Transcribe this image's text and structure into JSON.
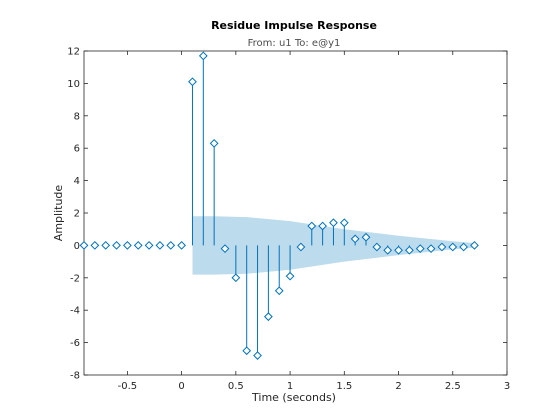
{
  "chart_data": {
    "type": "stem",
    "title": "Residue Impulse Response",
    "subtitle": "From: u1  To: e@y1",
    "xlabel": "Time (seconds)",
    "ylabel": "Amplitude",
    "xlim": [
      -0.9,
      3.0
    ],
    "ylim": [
      -8,
      12
    ],
    "xticks": [
      -0.5,
      0,
      0.5,
      1,
      1.5,
      2,
      2.5,
      3
    ],
    "xtick_labels": [
      "-0.5",
      "0",
      "0.5",
      "1",
      "1.5",
      "2",
      "2.5",
      "3"
    ],
    "yticks": [
      -8,
      -6,
      -4,
      -2,
      0,
      2,
      4,
      6,
      8,
      10,
      12
    ],
    "ytick_labels": [
      "-8",
      "-6",
      "-4",
      "-2",
      "0",
      "2",
      "4",
      "6",
      "8",
      "10",
      "12"
    ],
    "grid": false,
    "series": [
      {
        "x": [
          -0.9,
          -0.8,
          -0.7,
          -0.6,
          -0.5,
          -0.4,
          -0.3,
          -0.2,
          -0.1,
          0.0,
          0.1,
          0.2,
          0.3,
          0.4,
          0.5,
          0.6,
          0.7,
          0.8,
          0.9,
          1.0,
          1.1,
          1.2,
          1.3,
          1.4,
          1.5,
          1.6,
          1.7,
          1.8,
          1.9,
          2.0,
          2.1,
          2.2,
          2.3,
          2.4,
          2.5,
          2.6,
          2.7
        ],
        "y": [
          0.0,
          0.0,
          0.0,
          0.0,
          0.0,
          0.0,
          0.0,
          0.0,
          0.0,
          0.0,
          10.1,
          11.7,
          6.3,
          -0.2,
          -2.0,
          -6.5,
          -6.8,
          -4.4,
          -2.8,
          -1.9,
          -0.1,
          1.2,
          1.2,
          1.4,
          1.4,
          0.4,
          0.5,
          -0.1,
          -0.3,
          -0.3,
          -0.3,
          -0.2,
          -0.2,
          -0.1,
          -0.1,
          -0.1,
          0.0
        ]
      }
    ],
    "confidence_region": {
      "x": [
        0.1,
        0.3,
        0.6,
        1.0,
        1.5,
        2.0,
        2.5,
        2.7
      ],
      "upper": [
        1.8,
        1.8,
        1.75,
        1.5,
        1.0,
        0.6,
        0.25,
        0.15
      ],
      "lower": [
        -1.8,
        -1.8,
        -1.75,
        -1.5,
        -1.0,
        -0.6,
        -0.25,
        -0.15
      ]
    },
    "colors": {
      "stem": "#0072bd",
      "confidence": "#bcdbec",
      "axis": "#262626",
      "title": "#000000",
      "subtitle": "#4d4d4d"
    }
  }
}
